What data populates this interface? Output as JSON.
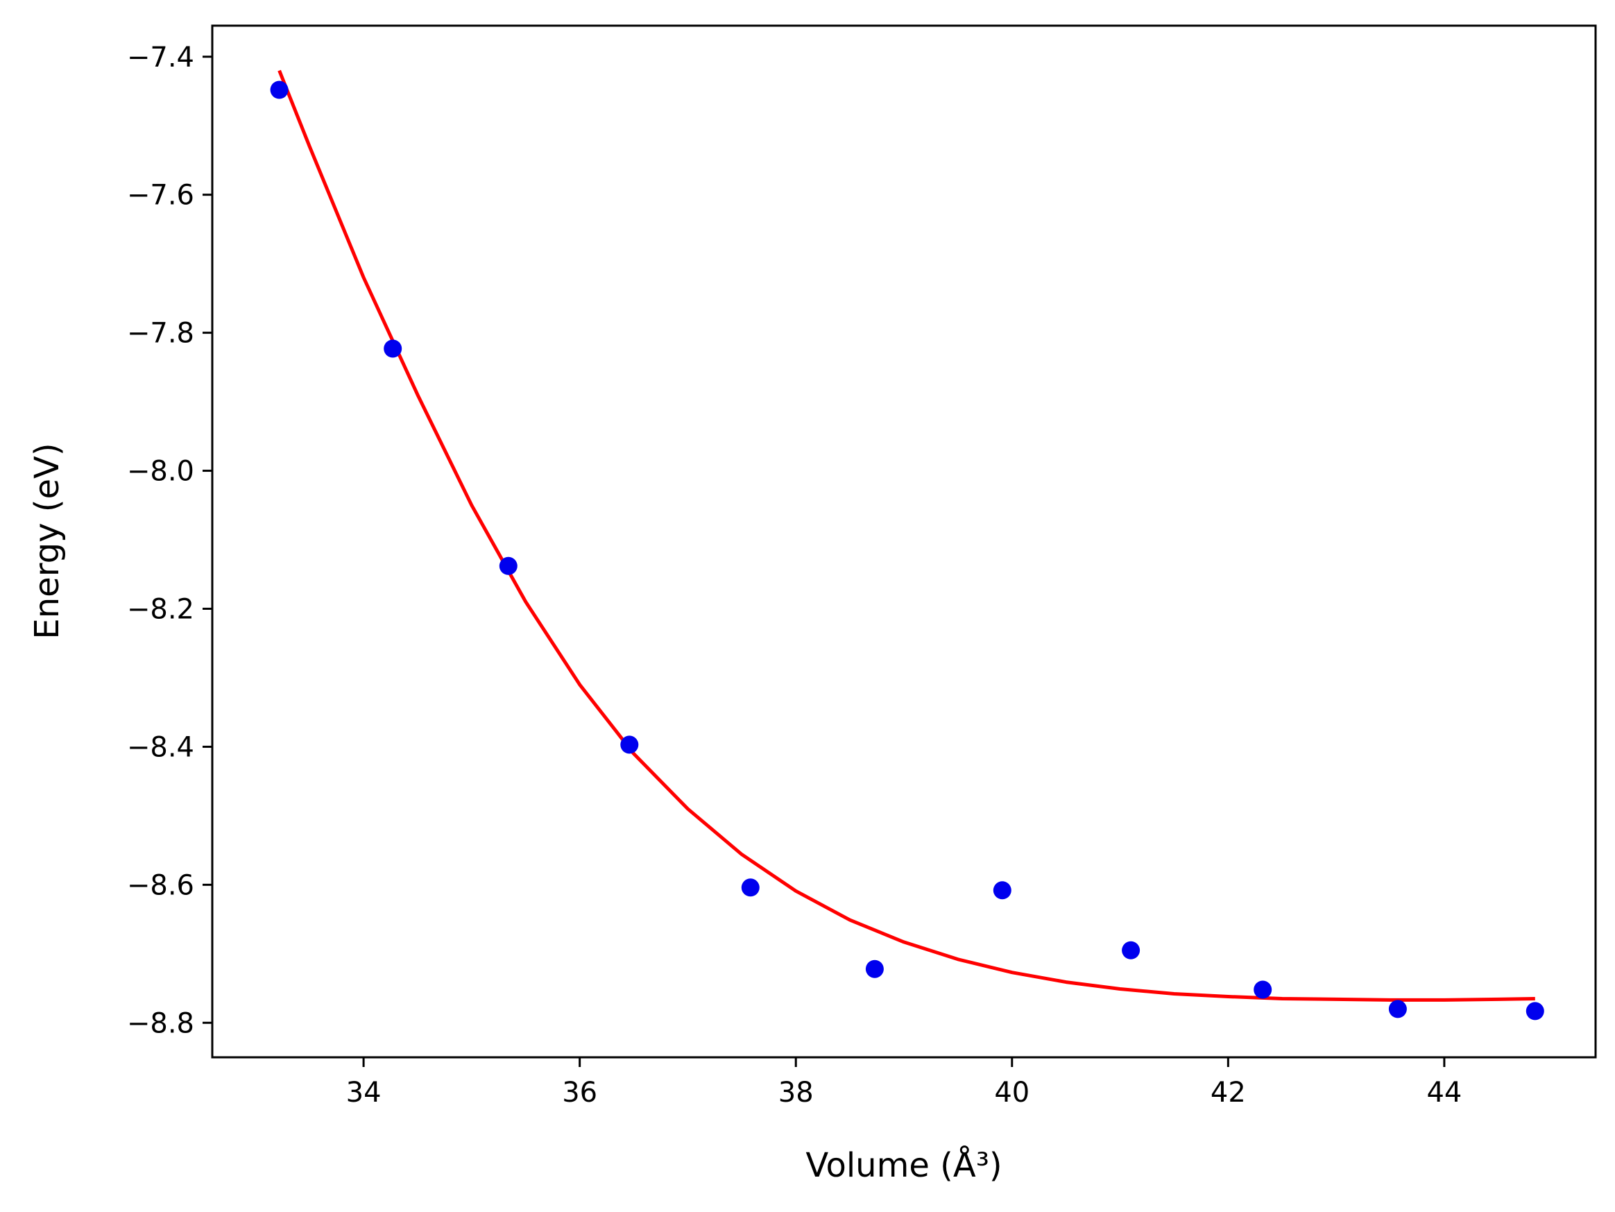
{
  "chart_data": {
    "type": "scatter",
    "title": "",
    "xlabel": "Volume (Å³)",
    "ylabel": "Energy (eV)",
    "xlim": [
      32.6,
      45.4
    ],
    "ylim": [
      -8.85,
      -7.355
    ],
    "xticks": [
      34,
      36,
      38,
      40,
      42,
      44
    ],
    "yticks": [
      -7.4,
      -7.6,
      -7.8,
      -8.0,
      -8.2,
      -8.4,
      -8.6,
      -8.8
    ],
    "xtick_labels": [
      "34",
      "36",
      "38",
      "40",
      "42",
      "44"
    ],
    "ytick_labels": [
      "−7.4",
      "−7.6",
      "−7.8",
      "−8.0",
      "−8.2",
      "−8.4",
      "−8.6",
      "−8.8"
    ],
    "grid": false,
    "series": [
      {
        "kind": "points",
        "color": "#0000ee",
        "x": [
          33.22,
          34.27,
          35.34,
          36.46,
          37.58,
          38.73,
          39.91,
          41.1,
          42.32,
          43.57,
          44.84
        ],
        "y": [
          -7.448,
          -7.823,
          -8.138,
          -8.397,
          -8.604,
          -8.722,
          -8.608,
          -8.695,
          -8.752,
          -8.78,
          -8.783
        ]
      },
      {
        "kind": "fit-line",
        "color": "#ff0000",
        "x": [
          33.22,
          33.5,
          34.0,
          34.5,
          35.0,
          35.5,
          36.0,
          36.5,
          37.0,
          37.5,
          38.0,
          38.5,
          39.0,
          39.5,
          40.0,
          40.5,
          41.0,
          41.5,
          42.0,
          42.5,
          43.0,
          43.5,
          44.0,
          44.5,
          44.84
        ],
        "y": [
          -7.42,
          -7.53,
          -7.72,
          -7.89,
          -8.05,
          -8.19,
          -8.31,
          -8.41,
          -8.49,
          -8.556,
          -8.609,
          -8.651,
          -8.683,
          -8.708,
          -8.727,
          -8.741,
          -8.751,
          -8.758,
          -8.762,
          -8.765,
          -8.766,
          -8.767,
          -8.767,
          -8.766,
          -8.765
        ]
      }
    ]
  }
}
